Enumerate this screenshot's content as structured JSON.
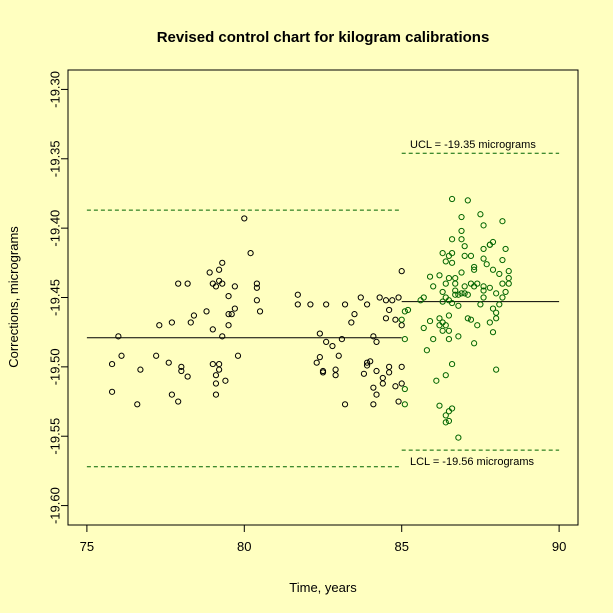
{
  "colors": {
    "background": "#ffffc0",
    "ink": "#000000",
    "green": "#006400"
  },
  "chart_data": {
    "type": "scatter",
    "title": "Revised control chart for kilogram calibrations",
    "xlabel": "Time, years",
    "ylabel": "Corrections, micrograms",
    "xlim": [
      74.4,
      90.6
    ],
    "ylim": [
      -19.614,
      -19.286
    ],
    "xticks": [
      75,
      80,
      85,
      90
    ],
    "yticks": [
      -19.3,
      -19.35,
      -19.4,
      -19.45,
      -19.5,
      -19.55,
      -19.6
    ],
    "xtick_labels": [
      "75",
      "80",
      "85",
      "90"
    ],
    "ytick_labels": [
      "-19.30",
      "-19.35",
      "-19.40",
      "-19.45",
      "-19.50",
      "-19.55",
      "-19.60"
    ],
    "grid": false,
    "legend": "none",
    "annotations": {
      "ucl_text": "UCL =  -19.35 micrograms",
      "lcl_text": "LCL =  -19.56 micrograms"
    },
    "reference_lines": [
      {
        "role": "old-center",
        "style": "solid",
        "color": "#000000",
        "x": [
          75,
          85
        ],
        "y": -19.479
      },
      {
        "role": "old-ucl",
        "style": "dashed",
        "color": "#006400",
        "x": [
          75,
          85
        ],
        "y": -19.387
      },
      {
        "role": "old-lcl",
        "style": "dashed",
        "color": "#006400",
        "x": [
          75,
          85
        ],
        "y": -19.572
      },
      {
        "role": "new-center",
        "style": "solid",
        "color": "#000000",
        "x": [
          85,
          90
        ],
        "y": -19.453
      },
      {
        "role": "new-ucl",
        "style": "dashed",
        "color": "#006400",
        "x": [
          85,
          90
        ],
        "y": -19.346
      },
      {
        "role": "new-lcl",
        "style": "dashed",
        "color": "#006400",
        "x": [
          85,
          90
        ],
        "y": -19.56
      }
    ],
    "series": [
      {
        "color": "#000000",
        "points": [
          [
            75.8,
            -19.498
          ],
          [
            75.8,
            -19.518
          ],
          [
            76.0,
            -19.478
          ],
          [
            76.1,
            -19.492
          ],
          [
            76.6,
            -19.527
          ],
          [
            76.7,
            -19.502
          ],
          [
            77.2,
            -19.492
          ],
          [
            77.3,
            -19.47
          ],
          [
            77.6,
            -19.497
          ],
          [
            77.7,
            -19.468
          ],
          [
            77.7,
            -19.52
          ],
          [
            77.9,
            -19.525
          ],
          [
            77.9,
            -19.44
          ],
          [
            78.0,
            -19.5
          ],
          [
            78.0,
            -19.503
          ],
          [
            78.2,
            -19.44
          ],
          [
            78.2,
            -19.507
          ],
          [
            78.3,
            -19.468
          ],
          [
            78.4,
            -19.463
          ],
          [
            78.8,
            -19.46
          ],
          [
            78.9,
            -19.432
          ],
          [
            79.0,
            -19.44
          ],
          [
            79.0,
            -19.473
          ],
          [
            79.0,
            -19.498
          ],
          [
            79.1,
            -19.442
          ],
          [
            79.1,
            -19.506
          ],
          [
            79.1,
            -19.52
          ],
          [
            79.1,
            -19.512
          ],
          [
            79.2,
            -19.438
          ],
          [
            79.2,
            -19.43
          ],
          [
            79.2,
            -19.498
          ],
          [
            79.2,
            -19.502
          ],
          [
            79.3,
            -19.44
          ],
          [
            79.3,
            -19.425
          ],
          [
            79.3,
            -19.478
          ],
          [
            79.4,
            -19.51
          ],
          [
            79.5,
            -19.47
          ],
          [
            79.5,
            -19.449
          ],
          [
            79.5,
            -19.462
          ],
          [
            79.6,
            -19.462
          ],
          [
            79.7,
            -19.458
          ],
          [
            79.7,
            -19.442
          ],
          [
            79.8,
            -19.492
          ],
          [
            80.0,
            -19.393
          ],
          [
            80.2,
            -19.418
          ],
          [
            80.4,
            -19.44
          ],
          [
            80.4,
            -19.443
          ],
          [
            80.4,
            -19.452
          ],
          [
            80.5,
            -19.46
          ],
          [
            81.7,
            -19.448
          ],
          [
            81.7,
            -19.455
          ],
          [
            82.1,
            -19.455
          ],
          [
            82.3,
            -19.497
          ],
          [
            82.4,
            -19.493
          ],
          [
            82.4,
            -19.476
          ],
          [
            82.5,
            -19.504
          ],
          [
            82.5,
            -19.503
          ],
          [
            82.6,
            -19.455
          ],
          [
            82.6,
            -19.482
          ],
          [
            82.8,
            -19.485
          ],
          [
            82.9,
            -19.502
          ],
          [
            82.9,
            -19.506
          ],
          [
            83.0,
            -19.492
          ],
          [
            83.1,
            -19.48
          ],
          [
            83.2,
            -19.455
          ],
          [
            83.2,
            -19.527
          ],
          [
            83.4,
            -19.468
          ],
          [
            83.5,
            -19.462
          ],
          [
            83.7,
            -19.45
          ],
          [
            83.8,
            -19.505
          ],
          [
            83.9,
            -19.455
          ],
          [
            83.9,
            -19.497
          ],
          [
            83.9,
            -19.499
          ],
          [
            84.0,
            -19.496
          ],
          [
            84.1,
            -19.478
          ],
          [
            84.1,
            -19.527
          ],
          [
            84.1,
            -19.515
          ],
          [
            84.2,
            -19.503
          ],
          [
            84.2,
            -19.52
          ],
          [
            84.2,
            -19.482
          ],
          [
            84.3,
            -19.45
          ],
          [
            84.4,
            -19.508
          ],
          [
            84.4,
            -19.512
          ],
          [
            84.5,
            -19.465
          ],
          [
            84.5,
            -19.452
          ],
          [
            84.6,
            -19.5
          ],
          [
            84.6,
            -19.504
          ],
          [
            84.6,
            -19.459
          ],
          [
            84.7,
            -19.452
          ],
          [
            84.8,
            -19.514
          ],
          [
            84.8,
            -19.466
          ],
          [
            84.9,
            -19.525
          ],
          [
            84.9,
            -19.45
          ],
          [
            85.0,
            -19.431
          ],
          [
            85.0,
            -19.47
          ],
          [
            85.0,
            -19.512
          ],
          [
            85.0,
            -19.5
          ]
        ]
      },
      {
        "color": "#006400",
        "points": [
          [
            85.0,
            -19.466
          ],
          [
            85.1,
            -19.48
          ],
          [
            85.1,
            -19.46
          ],
          [
            85.1,
            -19.527
          ],
          [
            85.1,
            -19.516
          ],
          [
            85.2,
            -19.459
          ],
          [
            85.6,
            -19.452
          ],
          [
            85.7,
            -19.472
          ],
          [
            85.7,
            -19.45
          ],
          [
            85.8,
            -19.488
          ],
          [
            85.9,
            -19.435
          ],
          [
            85.9,
            -19.467
          ],
          [
            86.0,
            -19.442
          ],
          [
            86.0,
            -19.48
          ],
          [
            86.1,
            -19.51
          ],
          [
            86.2,
            -19.528
          ],
          [
            86.2,
            -19.47
          ],
          [
            86.2,
            -19.465
          ],
          [
            86.2,
            -19.434
          ],
          [
            86.3,
            -19.474
          ],
          [
            86.3,
            -19.468
          ],
          [
            86.3,
            -19.418
          ],
          [
            86.3,
            -19.453
          ],
          [
            86.3,
            -19.446
          ],
          [
            86.4,
            -19.506
          ],
          [
            86.4,
            -19.54
          ],
          [
            86.4,
            -19.535
          ],
          [
            86.4,
            -19.47
          ],
          [
            86.4,
            -19.45
          ],
          [
            86.4,
            -19.424
          ],
          [
            86.4,
            -19.44
          ],
          [
            86.5,
            -19.48
          ],
          [
            86.5,
            -19.474
          ],
          [
            86.5,
            -19.539
          ],
          [
            86.5,
            -19.532
          ],
          [
            86.5,
            -19.452
          ],
          [
            86.5,
            -19.463
          ],
          [
            86.5,
            -19.436
          ],
          [
            86.5,
            -19.42
          ],
          [
            86.6,
            -19.379
          ],
          [
            86.6,
            -19.408
          ],
          [
            86.6,
            -19.425
          ],
          [
            86.6,
            -19.454
          ],
          [
            86.6,
            -19.498
          ],
          [
            86.6,
            -19.53
          ],
          [
            86.6,
            -19.418
          ],
          [
            86.7,
            -19.445
          ],
          [
            86.7,
            -19.448
          ],
          [
            86.7,
            -19.436
          ],
          [
            86.7,
            -19.44
          ],
          [
            86.8,
            -19.456
          ],
          [
            86.8,
            -19.478
          ],
          [
            86.8,
            -19.551
          ],
          [
            86.8,
            -19.448
          ],
          [
            86.9,
            -19.432
          ],
          [
            86.9,
            -19.408
          ],
          [
            86.9,
            -19.447
          ],
          [
            86.9,
            -19.392
          ],
          [
            86.9,
            -19.402
          ],
          [
            87.0,
            -19.42
          ],
          [
            87.0,
            -19.447
          ],
          [
            87.0,
            -19.413
          ],
          [
            87.0,
            -19.442
          ],
          [
            87.1,
            -19.448
          ],
          [
            87.1,
            -19.38
          ],
          [
            87.1,
            -19.465
          ],
          [
            87.2,
            -19.466
          ],
          [
            87.2,
            -19.44
          ],
          [
            87.2,
            -19.42
          ],
          [
            87.3,
            -19.442
          ],
          [
            87.3,
            -19.43
          ],
          [
            87.3,
            -19.428
          ],
          [
            87.3,
            -19.483
          ],
          [
            87.4,
            -19.47
          ],
          [
            87.4,
            -19.44
          ],
          [
            87.5,
            -19.455
          ],
          [
            87.5,
            -19.39
          ],
          [
            87.6,
            -19.445
          ],
          [
            87.6,
            -19.415
          ],
          [
            87.6,
            -19.442
          ],
          [
            87.6,
            -19.45
          ],
          [
            87.6,
            -19.422
          ],
          [
            87.6,
            -19.398
          ],
          [
            87.7,
            -19.426
          ],
          [
            87.8,
            -19.412
          ],
          [
            87.8,
            -19.443
          ],
          [
            87.8,
            -19.468
          ],
          [
            87.8,
            -19.412
          ],
          [
            87.9,
            -19.41
          ],
          [
            87.9,
            -19.475
          ],
          [
            87.9,
            -19.458
          ],
          [
            87.9,
            -19.43
          ],
          [
            88.0,
            -19.465
          ],
          [
            88.0,
            -19.461
          ],
          [
            88.0,
            -19.447
          ],
          [
            88.0,
            -19.502
          ],
          [
            88.1,
            -19.433
          ],
          [
            88.1,
            -19.455
          ],
          [
            88.2,
            -19.423
          ],
          [
            88.2,
            -19.395
          ],
          [
            88.2,
            -19.44
          ],
          [
            88.2,
            -19.45
          ],
          [
            88.3,
            -19.415
          ],
          [
            88.3,
            -19.446
          ],
          [
            88.4,
            -19.431
          ],
          [
            88.4,
            -19.44
          ],
          [
            88.4,
            -19.436
          ]
        ]
      }
    ]
  }
}
